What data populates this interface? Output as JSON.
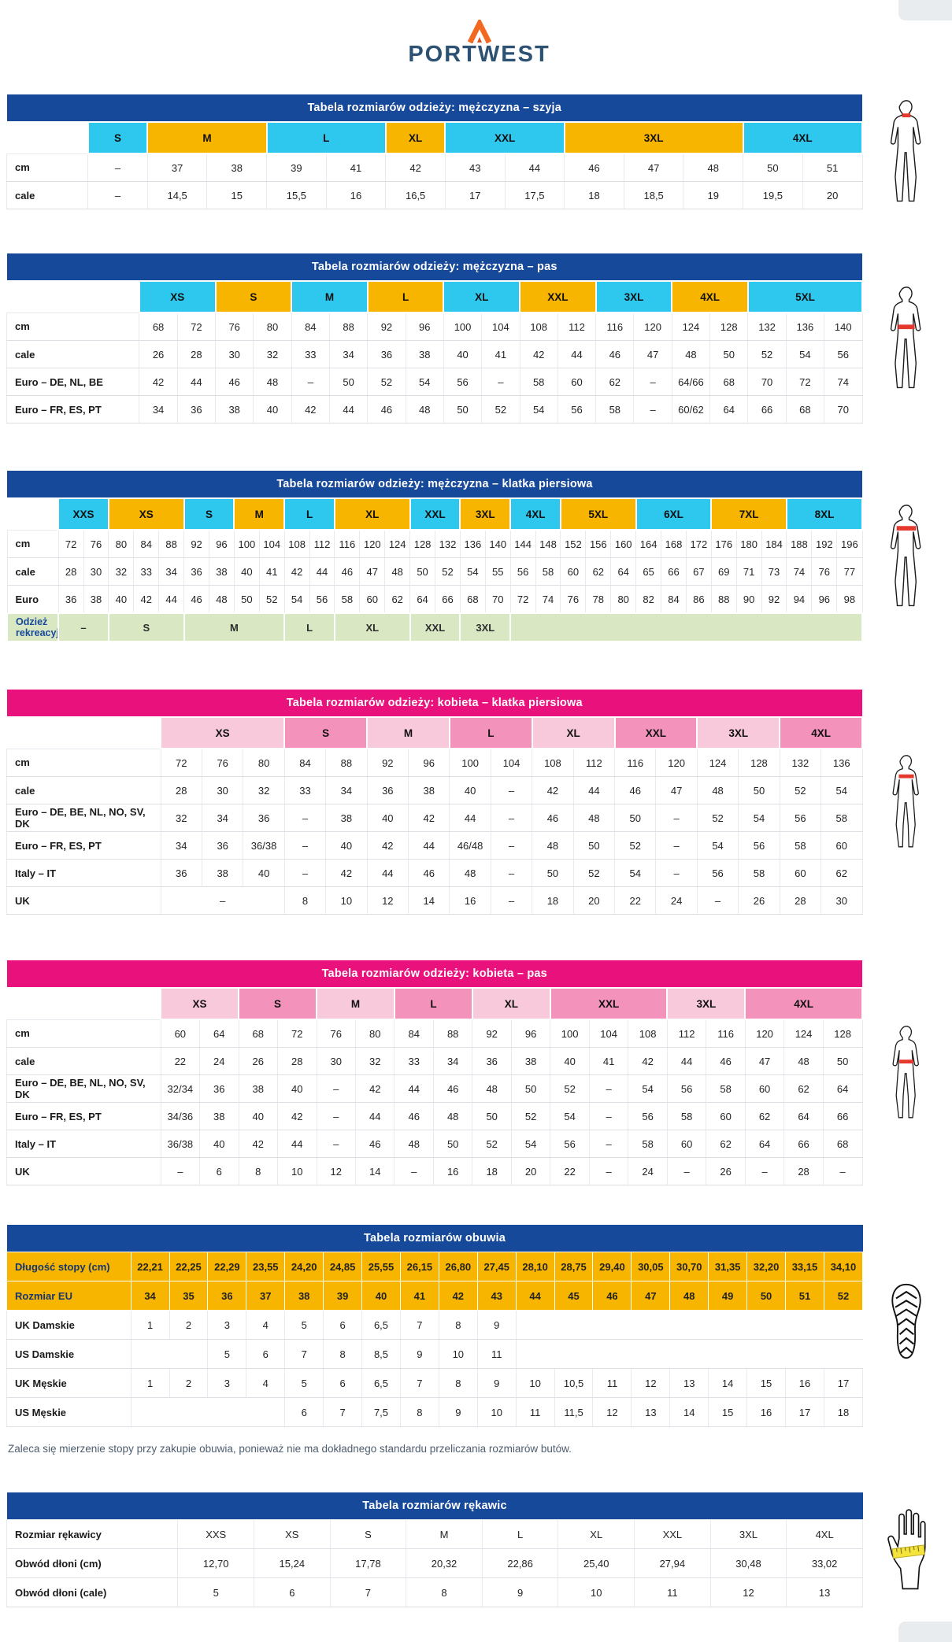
{
  "brand": {
    "name": "PORTWEST"
  },
  "colors": {
    "title_blue": "#17499b",
    "title_pink": "#e9117c",
    "band_cyan": "#2ec7ee",
    "band_yellow": "#f7b500",
    "band_pink_light": "#f8c9da",
    "band_pink_dark": "#f392bb",
    "leisure_green": "#d9e8c3",
    "highlight_red": "#e6392e",
    "glove_band_yellow": "#f4e33d",
    "logo_orange": "#f26a21"
  },
  "footnote": "Zaleca się mierzenie stopy przy zakupie obuwia, ponieważ nie ma dokładnego standardu przeliczania rozmiarów butów.",
  "icons": {
    "men_neck": "male-figure-neck-highlight",
    "men_waist": "male-figure-waist-highlight",
    "men_chest": "male-figure-chest-highlight",
    "women_chest": "female-figure-chest-highlight",
    "women_waist": "female-figure-waist-highlight",
    "shoes": "shoe-sole",
    "gloves": "hand-measure"
  },
  "tables": {
    "men_neck": {
      "title": "Tabela rozmiarów odzieży: mężczyzna – szyja",
      "theme": "blue",
      "label_w": "9.5%",
      "bands": [
        {
          "l": "S",
          "s": 1,
          "c": "cy"
        },
        {
          "l": "M",
          "s": 2,
          "c": "yl"
        },
        {
          "l": "L",
          "s": 2,
          "c": "cy"
        },
        {
          "l": "XL",
          "s": 1,
          "c": "yl"
        },
        {
          "l": "XXL",
          "s": 2,
          "c": "cy"
        },
        {
          "l": "3XL",
          "s": 3,
          "c": "yl"
        },
        {
          "l": "4XL",
          "s": 2,
          "c": "cy"
        }
      ],
      "rows": [
        {
          "label": "cm",
          "cells": [
            "–",
            "37",
            "38",
            "39",
            "41",
            "42",
            "43",
            "44",
            "46",
            "47",
            "48",
            "50",
            "51"
          ]
        },
        {
          "label": "cale",
          "cells": [
            "–",
            "14,5",
            "15",
            "15,5",
            "16",
            "16,5",
            "17",
            "17,5",
            "18",
            "18,5",
            "19",
            "19,5",
            "20"
          ]
        }
      ]
    },
    "men_waist": {
      "title": "Tabela rozmiarów odzieży: mężczyzna – pas",
      "theme": "blue",
      "label_w": "15.5%",
      "bands": [
        {
          "l": "XS",
          "s": 2,
          "c": "cy"
        },
        {
          "l": "S",
          "s": 2,
          "c": "yl"
        },
        {
          "l": "M",
          "s": 2,
          "c": "cy"
        },
        {
          "l": "L",
          "s": 2,
          "c": "yl"
        },
        {
          "l": "XL",
          "s": 2,
          "c": "cy"
        },
        {
          "l": "XXL",
          "s": 2,
          "c": "yl"
        },
        {
          "l": "3XL",
          "s": 2,
          "c": "cy"
        },
        {
          "l": "4XL",
          "s": 2,
          "c": "yl"
        },
        {
          "l": "5XL",
          "s": 3,
          "c": "cy"
        }
      ],
      "rows": [
        {
          "label": "cm",
          "cells": [
            "68",
            "72",
            "76",
            "80",
            "84",
            "88",
            "92",
            "96",
            "100",
            "104",
            "108",
            "112",
            "116",
            "120",
            "124",
            "128",
            "132",
            "136",
            "140"
          ]
        },
        {
          "label": "cale",
          "cells": [
            "26",
            "28",
            "30",
            "32",
            "33",
            "34",
            "36",
            "38",
            "40",
            "41",
            "42",
            "44",
            "46",
            "47",
            "48",
            "50",
            "52",
            "54",
            "56"
          ]
        },
        {
          "label": "Euro – DE, NL, BE",
          "cells": [
            "42",
            "44",
            "46",
            "48",
            "–",
            "50",
            "52",
            "54",
            "56",
            "–",
            "58",
            "60",
            "62",
            "–",
            "64/66",
            "68",
            "70",
            "72",
            "74"
          ]
        },
        {
          "label": "Euro – FR, ES, PT",
          "cells": [
            "34",
            "36",
            "38",
            "40",
            "42",
            "44",
            "46",
            "48",
            "50",
            "52",
            "54",
            "56",
            "58",
            "–",
            "60/62",
            "64",
            "66",
            "68",
            "70"
          ]
        }
      ]
    },
    "men_chest": {
      "title": "Tabela rozmiarów odzieży: mężczyzna – klatka piersiowa",
      "theme": "blue",
      "label_w": "6%",
      "bands": [
        {
          "l": "XXS",
          "s": 2,
          "c": "cy"
        },
        {
          "l": "XS",
          "s": 3,
          "c": "yl"
        },
        {
          "l": "S",
          "s": 2,
          "c": "cy"
        },
        {
          "l": "M",
          "s": 2,
          "c": "yl"
        },
        {
          "l": "L",
          "s": 2,
          "c": "cy"
        },
        {
          "l": "XL",
          "s": 3,
          "c": "yl"
        },
        {
          "l": "XXL",
          "s": 2,
          "c": "cy"
        },
        {
          "l": "3XL",
          "s": 2,
          "c": "yl"
        },
        {
          "l": "4XL",
          "s": 2,
          "c": "cy"
        },
        {
          "l": "5XL",
          "s": 3,
          "c": "yl"
        },
        {
          "l": "6XL",
          "s": 3,
          "c": "cy"
        },
        {
          "l": "7XL",
          "s": 3,
          "c": "yl"
        },
        {
          "l": "8XL",
          "s": 3,
          "c": "cy"
        }
      ],
      "rows": [
        {
          "label": "cm",
          "cells": [
            "72",
            "76",
            "80",
            "84",
            "88",
            "92",
            "96",
            "100",
            "104",
            "108",
            "112",
            "116",
            "120",
            "124",
            "128",
            "132",
            "136",
            "140",
            "144",
            "148",
            "152",
            "156",
            "160",
            "164",
            "168",
            "172",
            "176",
            "180",
            "184",
            "188",
            "192",
            "196"
          ]
        },
        {
          "label": "cale",
          "cells": [
            "28",
            "30",
            "32",
            "33",
            "34",
            "36",
            "38",
            "40",
            "41",
            "42",
            "44",
            "46",
            "47",
            "48",
            "50",
            "52",
            "54",
            "55",
            "56",
            "58",
            "60",
            "62",
            "64",
            "65",
            "66",
            "67",
            "69",
            "71",
            "73",
            "74",
            "76",
            "77"
          ]
        },
        {
          "label": "Euro",
          "cells": [
            "36",
            "38",
            "40",
            "42",
            "44",
            "46",
            "48",
            "50",
            "52",
            "54",
            "56",
            "58",
            "60",
            "62",
            "64",
            "66",
            "68",
            "70",
            "72",
            "74",
            "76",
            "78",
            "80",
            "82",
            "84",
            "86",
            "88",
            "90",
            "92",
            "94",
            "96",
            "98"
          ]
        },
        {
          "label": "Odzież rekreacyjna",
          "cls": "green-row",
          "cells": [
            {
              "v": "–",
              "span": 2
            },
            {
              "v": "S",
              "span": 3
            },
            {
              "v": "M",
              "span": 4
            },
            {
              "v": "L",
              "span": 2
            },
            {
              "v": "XL",
              "span": 3
            },
            {
              "v": "XXL",
              "span": 2
            },
            {
              "v": "3XL",
              "span": 2
            },
            {
              "v": "",
              "span": 14,
              "cls": "empty"
            }
          ]
        }
      ]
    },
    "women_chest": {
      "title": "Tabela rozmiarów odzieży: kobieta – klatka piersiowa",
      "theme": "pink",
      "label_w": "18%",
      "bands": [
        {
          "l": "XS",
          "s": 3,
          "c": "pl"
        },
        {
          "l": "S",
          "s": 2,
          "c": "pd"
        },
        {
          "l": "M",
          "s": 2,
          "c": "pl"
        },
        {
          "l": "L",
          "s": 2,
          "c": "pd"
        },
        {
          "l": "XL",
          "s": 2,
          "c": "pl"
        },
        {
          "l": "XXL",
          "s": 2,
          "c": "pd"
        },
        {
          "l": "3XL",
          "s": 2,
          "c": "pl"
        },
        {
          "l": "4XL",
          "s": 2,
          "c": "pd"
        }
      ],
      "rows": [
        {
          "label": "cm",
          "cells": [
            "72",
            "76",
            "80",
            "84",
            "88",
            "92",
            "96",
            "100",
            "104",
            "108",
            "112",
            "116",
            "120",
            "124",
            "128",
            "132",
            "136"
          ]
        },
        {
          "label": "cale",
          "cells": [
            "28",
            "30",
            "32",
            "33",
            "34",
            "36",
            "38",
            "40",
            "–",
            "42",
            "44",
            "46",
            "47",
            "48",
            "50",
            "52",
            "54"
          ]
        },
        {
          "label": "Euro – DE, BE, NL, NO, SV, DK",
          "cells": [
            "32",
            "34",
            "36",
            "–",
            "38",
            "40",
            "42",
            "44",
            "–",
            "46",
            "48",
            "50",
            "–",
            "52",
            "54",
            "56",
            "58"
          ]
        },
        {
          "label": "Euro – FR, ES, PT",
          "cells": [
            "34",
            "36",
            "36/38",
            "–",
            "40",
            "42",
            "44",
            "46/48",
            "–",
            "48",
            "50",
            "52",
            "–",
            "54",
            "56",
            "58",
            "60"
          ]
        },
        {
          "label": "Italy – IT",
          "cells": [
            "36",
            "38",
            "40",
            "–",
            "42",
            "44",
            "46",
            "48",
            "–",
            "50",
            "52",
            "54",
            "–",
            "56",
            "58",
            "60",
            "62"
          ]
        },
        {
          "label": "UK",
          "cells": [
            {
              "v": "–",
              "span": 3
            },
            "8",
            "10",
            "12",
            "14",
            "16",
            "–",
            "18",
            "20",
            "22",
            "24",
            "–",
            "26",
            "28",
            "30"
          ]
        }
      ]
    },
    "women_waist": {
      "title": "Tabela rozmiarów odzieży: kobieta – pas",
      "theme": "pink",
      "label_w": "18%",
      "bands": [
        {
          "l": "XS",
          "s": 2,
          "c": "pl"
        },
        {
          "l": "S",
          "s": 2,
          "c": "pd"
        },
        {
          "l": "M",
          "s": 2,
          "c": "pl"
        },
        {
          "l": "L",
          "s": 2,
          "c": "pd"
        },
        {
          "l": "XL",
          "s": 2,
          "c": "pl"
        },
        {
          "l": "XXL",
          "s": 3,
          "c": "pd"
        },
        {
          "l": "3XL",
          "s": 2,
          "c": "pl"
        },
        {
          "l": "4XL",
          "s": 3,
          "c": "pd"
        }
      ],
      "rows": [
        {
          "label": "cm",
          "cells": [
            "60",
            "64",
            "68",
            "72",
            "76",
            "80",
            "84",
            "88",
            "92",
            "96",
            "100",
            "104",
            "108",
            "112",
            "116",
            "120",
            "124",
            "128"
          ]
        },
        {
          "label": "cale",
          "cells": [
            "22",
            "24",
            "26",
            "28",
            "30",
            "32",
            "33",
            "34",
            "36",
            "38",
            "40",
            "41",
            "42",
            "44",
            "46",
            "47",
            "48",
            "50"
          ]
        },
        {
          "label": "Euro – DE, BE, NL, NO, SV, DK",
          "cells": [
            "32/34",
            "36",
            "38",
            "40",
            "–",
            "42",
            "44",
            "46",
            "48",
            "50",
            "52",
            "–",
            "54",
            "56",
            "58",
            "60",
            "62",
            "64"
          ]
        },
        {
          "label": "Euro – FR, ES, PT",
          "cells": [
            "34/36",
            "38",
            "40",
            "42",
            "–",
            "44",
            "46",
            "48",
            "50",
            "52",
            "54",
            "–",
            "56",
            "58",
            "60",
            "62",
            "64",
            "66"
          ]
        },
        {
          "label": "Italy – IT",
          "cells": [
            "36/38",
            "40",
            "42",
            "44",
            "–",
            "46",
            "48",
            "50",
            "52",
            "54",
            "56",
            "–",
            "58",
            "60",
            "62",
            "64",
            "66",
            "68"
          ]
        },
        {
          "label": "UK",
          "cells": [
            "–",
            "6",
            "8",
            "10",
            "12",
            "14",
            "–",
            "16",
            "18",
            "20",
            "22",
            "–",
            "24",
            "–",
            "26",
            "–",
            "28",
            "–"
          ]
        }
      ]
    },
    "shoes": {
      "title": "Tabela rozmiarów obuwia",
      "theme": "blue",
      "label_w": "14.5%",
      "tall": true,
      "rows": [
        {
          "label": "Długość stopy (cm)",
          "cls": "yellow-row",
          "cells": [
            "22,21",
            "22,25",
            "22,29",
            "23,55",
            "24,20",
            "24,85",
            "25,55",
            "26,15",
            "26,80",
            "27,45",
            "28,10",
            "28,75",
            "29,40",
            "30,05",
            "30,70",
            "31,35",
            "32,20",
            "33,15",
            "34,10"
          ]
        },
        {
          "label": "Rozmiar EU",
          "cls": "yellow-row",
          "cells": [
            "34",
            "35",
            "36",
            "37",
            "38",
            "39",
            "40",
            "41",
            "42",
            "43",
            "44",
            "45",
            "46",
            "47",
            "48",
            "49",
            "50",
            "51",
            "52"
          ]
        },
        {
          "label": "UK Damskie",
          "cells": [
            "1",
            "2",
            "3",
            "4",
            "5",
            "6",
            "6,5",
            "7",
            "8",
            "9",
            {
              "v": "",
              "span": 9,
              "cls": "blank"
            }
          ]
        },
        {
          "label": "US Damskie",
          "cells": [
            {
              "v": "",
              "span": 2,
              "cls": "blank"
            },
            "5",
            "6",
            "7",
            "8",
            "8,5",
            "9",
            "10",
            "11",
            {
              "v": "",
              "span": 9,
              "cls": "blank"
            }
          ]
        },
        {
          "label": "UK Męskie",
          "cells": [
            "1",
            "2",
            "3",
            "4",
            "5",
            "6",
            "6,5",
            "7",
            "8",
            "9",
            "10",
            "10,5",
            "11",
            "12",
            "13",
            "14",
            "15",
            "16",
            "17"
          ]
        },
        {
          "label": "US Męskie",
          "cells": [
            {
              "v": "",
              "span": 4,
              "cls": "blank"
            },
            "6",
            "7",
            "7,5",
            "8",
            "9",
            "10",
            "11",
            "11,5",
            "12",
            "13",
            "14",
            "15",
            "16",
            "17",
            "18"
          ]
        }
      ]
    },
    "gloves": {
      "title": "Tabela rozmiarów rękawic",
      "theme": "blue",
      "label_w": "20%",
      "tall": true,
      "rows": [
        {
          "label": "Rozmiar rękawicy",
          "cells": [
            "XXS",
            "XS",
            "S",
            "M",
            "L",
            "XL",
            "XXL",
            "3XL",
            "4XL"
          ]
        },
        {
          "label": "Obwód dłoni (cm)",
          "cells": [
            "12,70",
            "15,24",
            "17,78",
            "20,32",
            "22,86",
            "25,40",
            "27,94",
            "30,48",
            "33,02"
          ]
        },
        {
          "label": "Obwód dłoni (cale)",
          "cells": [
            "5",
            "6",
            "7",
            "8",
            "9",
            "10",
            "11",
            "12",
            "13"
          ]
        }
      ]
    }
  }
}
